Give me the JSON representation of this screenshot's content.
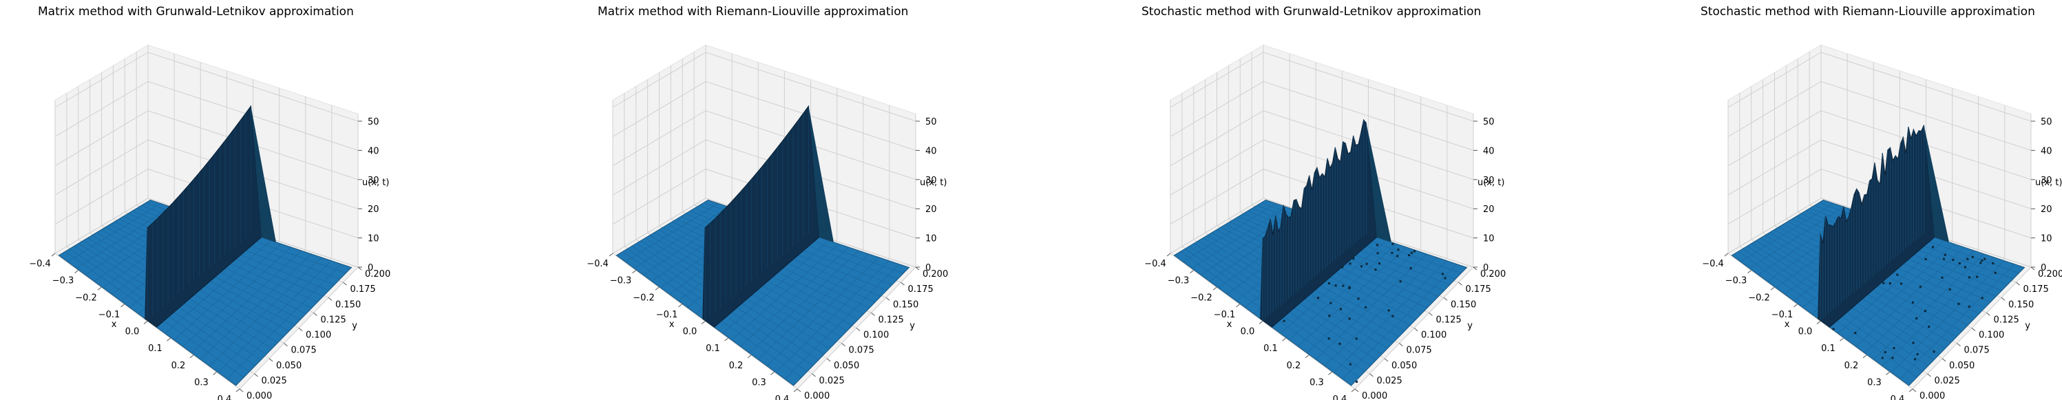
{
  "colors": {
    "surface": "#1f77b4",
    "surface_dark": "#0f2f4d",
    "pane": "#f2f2f2",
    "grid": "#d0d0d0",
    "axis": "#555555"
  },
  "chart_data": [
    {
      "type": "surface3d",
      "title": "Matrix method with Grunwald-Letnikov approximation",
      "xlabel": "x",
      "ylabel": "y",
      "zlabel": "u(x, t)",
      "x_ticks": [
        "−0.4",
        "−0.3",
        "−0.2",
        "−0.1",
        "0.0",
        "0.1",
        "0.2",
        "0.3",
        "0.4"
      ],
      "y_ticks": [
        "0.000",
        "0.025",
        "0.050",
        "0.075",
        "0.100",
        "0.125",
        "0.150",
        "0.175",
        "0.200"
      ],
      "z_ticks": [
        "0",
        "10",
        "20",
        "30",
        "40",
        "50"
      ],
      "xlim": [
        -0.4,
        0.4
      ],
      "ylim": [
        0,
        0.2
      ],
      "zlim": [
        0,
        50
      ],
      "peak_x": 0.0,
      "peak_at_y_start": 32,
      "peak_at_y_end": 44,
      "noise": false
    },
    {
      "type": "surface3d",
      "title": "Matrix method with Riemann-Liouville approximation",
      "xlabel": "x",
      "ylabel": "y",
      "zlabel": "u(x, t)",
      "x_ticks": [
        "−0.4",
        "−0.3",
        "−0.2",
        "−0.1",
        "0.0",
        "0.1",
        "0.2",
        "0.3",
        "0.4"
      ],
      "y_ticks": [
        "0.000",
        "0.025",
        "0.050",
        "0.075",
        "0.100",
        "0.125",
        "0.150",
        "0.175",
        "0.200"
      ],
      "z_ticks": [
        "0",
        "10",
        "20",
        "30",
        "40",
        "50"
      ],
      "xlim": [
        -0.4,
        0.4
      ],
      "ylim": [
        0,
        0.2
      ],
      "zlim": [
        0,
        50
      ],
      "peak_x": 0.0,
      "peak_at_y_start": 32,
      "peak_at_y_end": 44,
      "noise": false
    },
    {
      "type": "surface3d",
      "title": "Stochastic method with Grunwald-Letnikov approximation",
      "xlabel": "x",
      "ylabel": "y",
      "zlabel": "u(x, t)",
      "x_ticks": [
        "−0.4",
        "−0.3",
        "−0.2",
        "−0.1",
        "0.0",
        "0.1",
        "0.2",
        "0.3",
        "0.4"
      ],
      "y_ticks": [
        "0.000",
        "0.025",
        "0.050",
        "0.075",
        "0.100",
        "0.125",
        "0.150",
        "0.175",
        "0.200"
      ],
      "z_ticks": [
        "0",
        "10",
        "20",
        "30",
        "40",
        "50"
      ],
      "xlim": [
        -0.4,
        0.4
      ],
      "ylim": [
        0,
        0.2
      ],
      "zlim": [
        0,
        50
      ],
      "peak_x": 0.0,
      "peak_at_y_start": 30,
      "peak_at_y_end": 40,
      "noise": true
    },
    {
      "type": "surface3d",
      "title": "Stochastic method with Riemann-Liouville approximation",
      "xlabel": "x",
      "ylabel": "y",
      "zlabel": "u(x, t)",
      "x_ticks": [
        "−0.4",
        "−0.3",
        "−0.2",
        "−0.1",
        "0.0",
        "0.1",
        "0.2",
        "0.3",
        "0.4"
      ],
      "y_ticks": [
        "0.000",
        "0.025",
        "0.050",
        "0.075",
        "0.100",
        "0.125",
        "0.150",
        "0.175",
        "0.200"
      ],
      "z_ticks": [
        "0",
        "10",
        "20",
        "30",
        "40",
        "50"
      ],
      "xlim": [
        -0.4,
        0.4
      ],
      "ylim": [
        0,
        0.2
      ],
      "zlim": [
        0,
        50
      ],
      "peak_x": 0.0,
      "peak_at_y_start": 30,
      "peak_at_y_end": 42,
      "noise": true
    }
  ]
}
